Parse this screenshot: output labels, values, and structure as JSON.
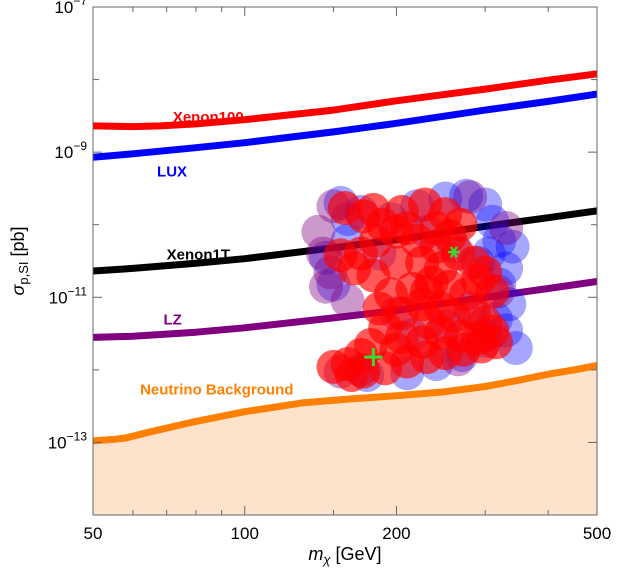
{
  "chart_data": {
    "type": "scatter",
    "title": "",
    "xlabel": {
      "main": "m",
      "sub": "χ",
      "unit": " [GeV]"
    },
    "ylabel": {
      "main": "σ",
      "sub": "p,SI",
      "unit": " [pb]"
    },
    "x_scale": "log",
    "y_scale": "log",
    "xlim": [
      50,
      500
    ],
    "ylim": [
      1e-14,
      1e-07
    ],
    "x_ticks": [
      {
        "value": 50,
        "label": "50"
      },
      {
        "value": 100,
        "label": "100"
      },
      {
        "value": 200,
        "label": "200"
      },
      {
        "value": 500,
        "label": "500"
      }
    ],
    "y_ticks": [
      {
        "value": 1e-07,
        "base": "10",
        "exp": "−7"
      },
      {
        "value": 1e-09,
        "base": "10",
        "exp": "−9"
      },
      {
        "value": 1e-11,
        "base": "10",
        "exp": "−11"
      },
      {
        "value": 1e-13,
        "base": "10",
        "exp": "−13"
      }
    ],
    "grid": false,
    "series": [
      {
        "name": "Xenon100",
        "kind": "line",
        "color": "#ff0000",
        "label_at": [
          72,
          2.6e-09
        ],
        "points": [
          [
            50,
            2.3e-09
          ],
          [
            60,
            2.25e-09
          ],
          [
            68,
            2.3e-09
          ],
          [
            80,
            2.45e-09
          ],
          [
            100,
            2.8e-09
          ],
          [
            150,
            3.8e-09
          ],
          [
            200,
            5.1e-09
          ],
          [
            300,
            7.4e-09
          ],
          [
            400,
            9.8e-09
          ],
          [
            500,
            1.2e-08
          ]
        ]
      },
      {
        "name": "LUX",
        "kind": "line",
        "color": "#0000ff",
        "label_at": [
          67,
          4.6e-10
        ],
        "points": [
          [
            50,
            8.5e-10
          ],
          [
            60,
            9.5e-10
          ],
          [
            80,
            1.15e-09
          ],
          [
            100,
            1.35e-09
          ],
          [
            150,
            1.9e-09
          ],
          [
            200,
            2.5e-09
          ],
          [
            300,
            3.8e-09
          ],
          [
            400,
            5e-09
          ],
          [
            500,
            6.3e-09
          ]
        ]
      },
      {
        "name": "Xenon1T",
        "kind": "line",
        "color": "#000000",
        "label_at": [
          70,
          3.3e-11
        ],
        "points": [
          [
            50,
            2.3e-11
          ],
          [
            60,
            2.5e-11
          ],
          [
            80,
            2.95e-11
          ],
          [
            100,
            3.4e-11
          ],
          [
            150,
            4.8e-11
          ],
          [
            200,
            6.2e-11
          ],
          [
            300,
            9.5e-11
          ],
          [
            400,
            1.25e-10
          ],
          [
            500,
            1.55e-10
          ]
        ]
      },
      {
        "name": "LZ",
        "kind": "line",
        "color": "#800080",
        "label_at": [
          69,
          4.2e-12
        ],
        "points": [
          [
            50,
            2.8e-12
          ],
          [
            60,
            2.9e-12
          ],
          [
            80,
            3.3e-12
          ],
          [
            100,
            3.8e-12
          ],
          [
            150,
            5.2e-12
          ],
          [
            200,
            6.6e-12
          ],
          [
            300,
            1e-11
          ],
          [
            400,
            1.32e-11
          ],
          [
            500,
            1.65e-11
          ]
        ]
      },
      {
        "name": "Neutrino Background",
        "kind": "line",
        "color": "#ff8000",
        "fill": "#fde3cc",
        "label_at": [
          62,
          4.6e-13
        ],
        "points": [
          [
            50,
            1.05e-13
          ],
          [
            55,
            1.1e-13
          ],
          [
            58,
            1.15e-13
          ],
          [
            65,
            1.4e-13
          ],
          [
            80,
            1.95e-13
          ],
          [
            100,
            2.65e-13
          ],
          [
            130,
            3.5e-13
          ],
          [
            160,
            3.95e-13
          ],
          [
            200,
            4.4e-13
          ],
          [
            250,
            5e-13
          ],
          [
            300,
            5.9e-13
          ],
          [
            350,
            7.2e-13
          ],
          [
            400,
            8.7e-13
          ],
          [
            450,
            1e-12
          ],
          [
            500,
            1.15e-12
          ]
        ]
      },
      {
        "name": "",
        "kind": "scatter",
        "color": "#0000ff",
        "opacity": 0.35,
        "points": [
          [
            155,
            2e-10
          ],
          [
            170,
            1.5e-10
          ],
          [
            195,
            1.2e-10
          ],
          [
            220,
            1.8e-10
          ],
          [
            250,
            2.3e-10
          ],
          [
            275,
            2.5e-10
          ],
          [
            300,
            1.9e-10
          ],
          [
            310,
            1.1e-10
          ],
          [
            320,
            6e-11
          ],
          [
            305,
            4e-11
          ],
          [
            330,
            2.5e-11
          ],
          [
            320,
            1.5e-11
          ],
          [
            335,
            8e-12
          ],
          [
            315,
            5e-12
          ],
          [
            330,
            3.5e-12
          ],
          [
            300,
            2.5e-12
          ],
          [
            270,
            1.6e-12
          ],
          [
            240,
            1.2e-12
          ],
          [
            210,
            9e-13
          ],
          [
            175,
            8.5e-13
          ],
          [
            150,
            1.5e-11
          ],
          [
            145,
            3.5e-11
          ],
          [
            160,
            6e-11
          ],
          [
            185,
            4e-11
          ],
          [
            230,
            8e-11
          ],
          [
            260,
            5e-11
          ],
          [
            290,
            3e-11
          ],
          [
            280,
            7e-12
          ],
          [
            250,
            4e-12
          ],
          [
            215,
            3e-12
          ],
          [
            340,
            5e-11
          ],
          [
            345,
            2e-12
          ],
          [
            160,
            1.2e-10
          ]
        ]
      },
      {
        "name": "",
        "kind": "scatter",
        "color": "#800080",
        "opacity": 0.4,
        "points": [
          [
            140,
            8e-11
          ],
          [
            143,
            4e-11
          ],
          [
            148,
            2.2e-11
          ],
          [
            145,
            1.4e-11
          ],
          [
            160,
            9e-12
          ],
          [
            200,
            6e-12
          ],
          [
            170,
            1e-12
          ],
          [
            155,
            9.5e-13
          ],
          [
            265,
            1.4e-12
          ],
          [
            298,
            3e-12
          ],
          [
            150,
            1.8e-10
          ],
          [
            330,
            9e-11
          ],
          [
            318,
            1.2e-11
          ],
          [
            280,
            2.4e-10
          ]
        ]
      },
      {
        "name": "",
        "kind": "scatter",
        "color": "#ff0000",
        "opacity": 0.65,
        "points": [
          [
            158,
            1.7e-10
          ],
          [
            172,
            1.3e-10
          ],
          [
            188,
            1e-10
          ],
          [
            205,
            1.5e-10
          ],
          [
            228,
            1.9e-10
          ],
          [
            250,
            1.4e-10
          ],
          [
            268,
            1e-10
          ],
          [
            255,
            7e-11
          ],
          [
            240,
            5e-11
          ],
          [
            220,
            6e-11
          ],
          [
            200,
            8e-11
          ],
          [
            182,
            6e-11
          ],
          [
            170,
            4e-11
          ],
          [
            165,
            2.5e-11
          ],
          [
            180,
            2e-11
          ],
          [
            200,
            3e-11
          ],
          [
            225,
            3e-11
          ],
          [
            245,
            2.5e-11
          ],
          [
            265,
            4e-11
          ],
          [
            285,
            3e-11
          ],
          [
            290,
            1.7e-11
          ],
          [
            275,
            1.1e-11
          ],
          [
            255,
            1.4e-11
          ],
          [
            235,
            1.6e-11
          ],
          [
            215,
            1.3e-11
          ],
          [
            195,
            1.1e-11
          ],
          [
            185,
            7e-12
          ],
          [
            205,
            6e-12
          ],
          [
            225,
            8e-12
          ],
          [
            245,
            7e-12
          ],
          [
            260,
            5.5e-12
          ],
          [
            285,
            6e-12
          ],
          [
            300,
            4.5e-12
          ],
          [
            310,
            3.4e-12
          ],
          [
            290,
            2.7e-12
          ],
          [
            268,
            2.9e-12
          ],
          [
            245,
            3.2e-12
          ],
          [
            225,
            2.4e-12
          ],
          [
            205,
            2.8e-12
          ],
          [
            190,
            3.8e-12
          ],
          [
            178,
            2.2e-12
          ],
          [
            170,
            1.6e-12
          ],
          [
            160,
            1.2e-12
          ],
          [
            172,
            9.5e-13
          ],
          [
            190,
            1.05e-12
          ],
          [
            210,
            1.3e-12
          ],
          [
            230,
            1.5e-12
          ],
          [
            250,
            1.7e-12
          ],
          [
            272,
            1.9e-12
          ],
          [
            295,
            2.1e-12
          ],
          [
            315,
            2.4e-12
          ],
          [
            150,
            1.1e-12
          ],
          [
            163,
            8.5e-13
          ],
          [
            200,
            1.9e-12
          ],
          [
            232,
            4.5e-12
          ],
          [
            210,
            9e-11
          ],
          [
            180,
            1.6e-10
          ],
          [
            240,
            9e-11
          ],
          [
            230,
            1.2e-11
          ],
          [
            300,
            2.2e-11
          ],
          [
            155,
            3.8e-11
          ],
          [
            310,
            1.2e-11
          ]
        ]
      },
      {
        "name": "",
        "kind": "marker",
        "marker": "star",
        "color": "#33dd33",
        "points": [
          [
            260,
            4.2e-11
          ]
        ]
      },
      {
        "name": "",
        "kind": "marker",
        "marker": "plus",
        "color": "#33dd33",
        "points": [
          [
            180,
            1.5e-12
          ]
        ]
      }
    ]
  }
}
